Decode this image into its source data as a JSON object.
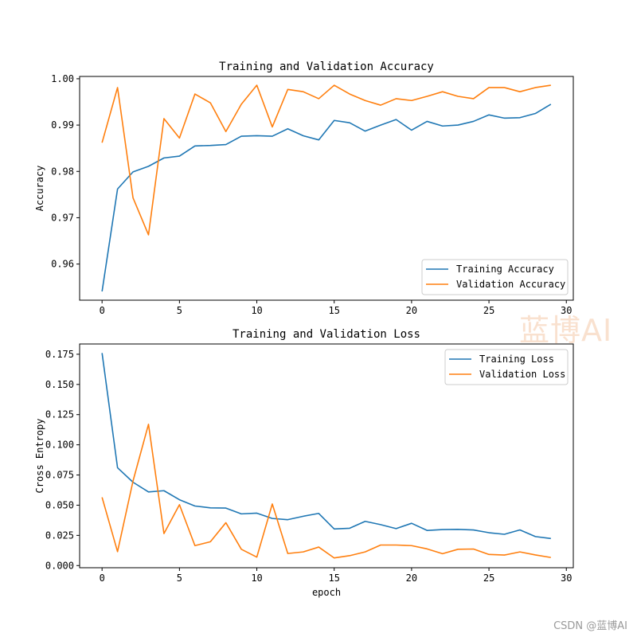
{
  "chart_data": [
    {
      "type": "line",
      "title": "Training and Validation Accuracy",
      "xlabel": "",
      "ylabel": "Accuracy",
      "xlim": [
        -1.45,
        30.45
      ],
      "ylim": [
        0.9522,
        1.0005
      ],
      "xticks": [
        0,
        5,
        10,
        15,
        20,
        25,
        30
      ],
      "yticks": [
        0.96,
        0.97,
        0.98,
        0.99,
        1.0
      ],
      "ytick_labels": [
        "0.96",
        "0.97",
        "0.98",
        "0.99",
        "1.00"
      ],
      "legend_position": "lower-right",
      "x": [
        0,
        1,
        2,
        3,
        4,
        5,
        6,
        7,
        8,
        9,
        10,
        11,
        12,
        13,
        14,
        15,
        16,
        17,
        18,
        19,
        20,
        21,
        22,
        23,
        24,
        25,
        26,
        27,
        28,
        29
      ],
      "series": [
        {
          "name": "Training Accuracy",
          "color": "#1f77b4",
          "values": [
            0.9541,
            0.9762,
            0.9799,
            0.9811,
            0.9829,
            0.9833,
            0.9855,
            0.9856,
            0.9858,
            0.9876,
            0.9877,
            0.9876,
            0.9892,
            0.9877,
            0.9868,
            0.991,
            0.9905,
            0.9887,
            0.99,
            0.9912,
            0.9889,
            0.9908,
            0.9898,
            0.99,
            0.9908,
            0.9922,
            0.9915,
            0.9916,
            0.9925,
            0.9945
          ]
        },
        {
          "name": "Validation Accuracy",
          "color": "#ff7f0e",
          "values": [
            0.9862,
            0.9981,
            0.9743,
            0.9663,
            0.9914,
            0.9872,
            0.9967,
            0.9948,
            0.9886,
            0.9945,
            0.9986,
            0.9896,
            0.9977,
            0.9972,
            0.9957,
            0.9986,
            0.9967,
            0.9953,
            0.9943,
            0.9957,
            0.9953,
            0.9962,
            0.9972,
            0.9962,
            0.9957,
            0.9981,
            0.9981,
            0.9972,
            0.9981,
            0.9986
          ]
        }
      ]
    },
    {
      "type": "line",
      "title": "Training and Validation Loss",
      "xlabel": "epoch",
      "ylabel": "Cross Entropy",
      "xlim": [
        -1.45,
        30.45
      ],
      "ylim": [
        -0.0018,
        0.1835
      ],
      "xticks": [
        0,
        5,
        10,
        15,
        20,
        25,
        30
      ],
      "yticks": [
        0.0,
        0.025,
        0.05,
        0.075,
        0.1,
        0.125,
        0.15,
        0.175
      ],
      "ytick_labels": [
        "0.000",
        "0.025",
        "0.050",
        "0.075",
        "0.100",
        "0.125",
        "0.150",
        "0.175"
      ],
      "legend_position": "upper-right",
      "x": [
        0,
        1,
        2,
        3,
        4,
        5,
        6,
        7,
        8,
        9,
        10,
        11,
        12,
        13,
        14,
        15,
        16,
        17,
        18,
        19,
        20,
        21,
        22,
        23,
        24,
        25,
        26,
        27,
        28,
        29
      ],
      "series": [
        {
          "name": "Training Loss",
          "color": "#1f77b4",
          "values": [
            0.176,
            0.081,
            0.069,
            0.061,
            0.062,
            0.0545,
            0.0493,
            0.0478,
            0.0476,
            0.0428,
            0.0434,
            0.039,
            0.038,
            0.0408,
            0.0432,
            0.0303,
            0.0309,
            0.0366,
            0.0339,
            0.0306,
            0.035,
            0.0291,
            0.0298,
            0.03,
            0.0295,
            0.0272,
            0.0259,
            0.0295,
            0.024,
            0.0224
          ]
        },
        {
          "name": "Validation Loss",
          "color": "#ff7f0e",
          "values": [
            0.0565,
            0.0115,
            0.07,
            0.117,
            0.0265,
            0.0504,
            0.0165,
            0.0197,
            0.0355,
            0.0135,
            0.007,
            0.051,
            0.01,
            0.0113,
            0.0153,
            0.0063,
            0.0082,
            0.0113,
            0.017,
            0.017,
            0.0165,
            0.0138,
            0.0098,
            0.0135,
            0.0137,
            0.0092,
            0.0087,
            0.0113,
            0.0088,
            0.0067
          ]
        }
      ]
    }
  ],
  "watermark": "蓝博AI",
  "footer": "CSDN @蓝博AI"
}
